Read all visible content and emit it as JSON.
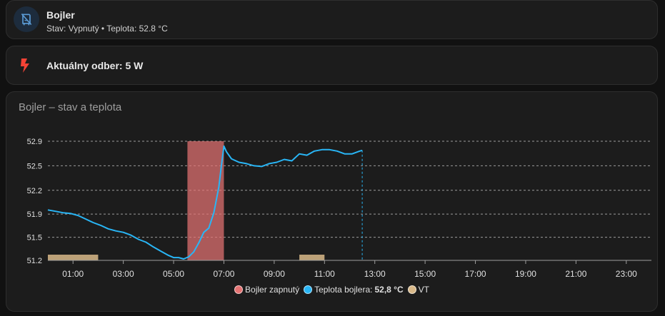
{
  "boiler": {
    "name": "Bojler",
    "state_line": "Stav: Vypnutý • Teplota: 52.8 °C",
    "icon": "water-boiler-off-icon"
  },
  "power": {
    "label": "Aktuálny odber: 5 W",
    "icon": "flash-icon"
  },
  "chart_card": {
    "title": "Bojler – stav a teplota"
  },
  "colors": {
    "temp_line": "#29b6f6",
    "heating_on": "#e57373",
    "vt": "#d8b888",
    "bolt": "#f44336"
  },
  "chart_data": {
    "type": "line",
    "title": "Bojler – stav a teplota",
    "x_unit": "hours",
    "xlim": [
      0,
      24
    ],
    "ylim": [
      51.2,
      52.9
    ],
    "y_ticks": [
      "52.9",
      "52.5",
      "52.2",
      "51.9",
      "51.5",
      "51.2"
    ],
    "y_tick_values": [
      52.9,
      52.55,
      52.2,
      51.86,
      51.53,
      51.2
    ],
    "x_ticks": [
      "01:00",
      "03:00",
      "05:00",
      "07:00",
      "09:00",
      "11:00",
      "13:00",
      "15:00",
      "17:00",
      "19:00",
      "21:00",
      "23:00"
    ],
    "x_tick_values": [
      1,
      3,
      5,
      7,
      9,
      11,
      13,
      15,
      17,
      19,
      21,
      23
    ],
    "grid": true,
    "legend_position": "bottom",
    "series": [
      {
        "name": "Bojler zapnutý",
        "kind": "band",
        "intervals": [
          [
            5.55,
            7.0
          ]
        ]
      },
      {
        "name": "Teplota bojlera: 52,8 °C",
        "kind": "line",
        "x": [
          0,
          0.3,
          0.6,
          0.9,
          1.2,
          1.5,
          1.8,
          2.1,
          2.4,
          2.7,
          3.0,
          3.3,
          3.6,
          3.9,
          4.2,
          4.5,
          4.8,
          5.0,
          5.2,
          5.4,
          5.6,
          5.8,
          6.0,
          6.2,
          6.4,
          6.6,
          6.8,
          6.9,
          7.0,
          7.1,
          7.3,
          7.6,
          7.9,
          8.2,
          8.5,
          8.8,
          9.1,
          9.4,
          9.7,
          10.0,
          10.3,
          10.6,
          10.9,
          11.2,
          11.5,
          11.8,
          12.1,
          12.4,
          12.5
        ],
        "y": [
          51.92,
          51.9,
          51.88,
          51.87,
          51.84,
          51.79,
          51.74,
          51.7,
          51.65,
          51.62,
          51.6,
          51.56,
          51.5,
          51.46,
          51.39,
          51.33,
          51.27,
          51.24,
          51.24,
          51.22,
          51.25,
          51.32,
          51.45,
          51.6,
          51.66,
          51.88,
          52.25,
          52.55,
          52.83,
          52.75,
          52.65,
          52.6,
          52.58,
          52.55,
          52.54,
          52.58,
          52.6,
          52.64,
          52.62,
          52.72,
          52.7,
          52.76,
          52.78,
          52.78,
          52.76,
          52.72,
          52.72,
          52.76,
          52.77
        ]
      },
      {
        "name": "VT",
        "kind": "band",
        "intervals": [
          [
            0,
            2.0
          ],
          [
            10.0,
            11.0
          ]
        ]
      }
    ]
  },
  "legend": [
    {
      "label": "Bojler zapnutý",
      "color": "#e57373"
    },
    {
      "label": "Teplota bojlera: ",
      "value": "52,8 °C",
      "color": "#29b6f6"
    },
    {
      "label": "VT",
      "color": "#d8b888"
    }
  ]
}
